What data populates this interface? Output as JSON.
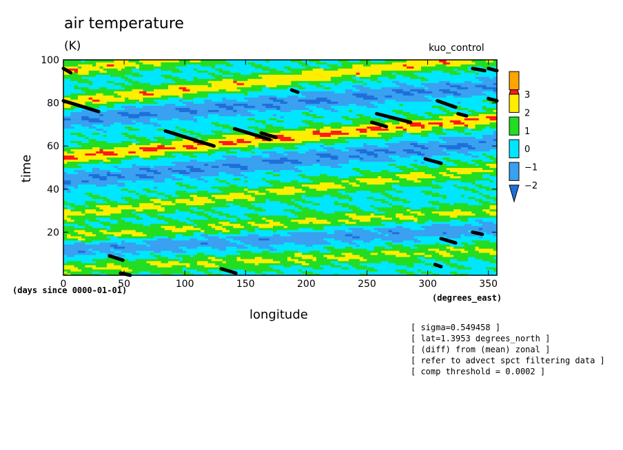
{
  "title": "air temperature",
  "units": "(K)",
  "run_label": "kuo_control",
  "time_units": "(days since 0000-01-01)",
  "lon_units": "(degrees_east)",
  "notes": [
    "[ sigma=0.549458 ]",
    "[ lat=1.3953 degrees_north ]",
    "[ (diff) from (mean) zonal ]",
    "[ refer to advect spct filtering data ]",
    "[ comp threshold = 0.0002 ]"
  ],
  "chart_data": {
    "type": "heatmap",
    "title": "air temperature",
    "subtitle": "(K)",
    "xlabel": "longitude",
    "ylabel": "time",
    "xlim": [
      0,
      357
    ],
    "ylim": [
      0,
      100
    ],
    "x_ticks": [
      "0",
      "50",
      "100",
      "150",
      "200",
      "250",
      "300",
      "350"
    ],
    "y_ticks": [
      "20",
      "40",
      "60",
      "80",
      "100"
    ],
    "colorbar": {
      "levels": [
        -3,
        -2,
        -1,
        0,
        1,
        2,
        3
      ],
      "tick_labels": [
        "3",
        "2",
        "1",
        "0",
        "−1",
        "−2"
      ],
      "colors": [
        "#1e6fd9",
        "#3aa0f0",
        "#00e6ff",
        "#22dd22",
        "#ffee00",
        "#ffa500",
        "#ff1a1a"
      ],
      "extend": "both"
    },
    "warm_bands": [
      {
        "t_at_lon0": 95,
        "t_at_lon357": 118,
        "amplitude": 1.8
      },
      {
        "t_at_lon0": 80,
        "t_at_lon357": 102,
        "amplitude": 1.9
      },
      {
        "t_at_lon0": 55,
        "t_at_lon357": 73,
        "amplitude": 2.3
      },
      {
        "t_at_lon0": 28,
        "t_at_lon357": 50,
        "amplitude": 1.5
      },
      {
        "t_at_lon0": 18,
        "t_at_lon357": 30,
        "amplitude": 1.4
      },
      {
        "t_at_lon0": 3,
        "t_at_lon357": 12,
        "amplitude": 1.3
      }
    ],
    "cold_bands": [
      {
        "t_at_lon0": 72,
        "t_at_lon357": 88,
        "amplitude": 1.7
      },
      {
        "t_at_lon0": 44,
        "t_at_lon357": 62,
        "amplitude": 1.7
      },
      {
        "t_at_lon0": 12,
        "t_at_lon357": 22,
        "amplitude": 1.3
      }
    ],
    "threshold_segments": [
      {
        "lon": [
          0,
          6
        ],
        "t": [
          96,
          94
        ]
      },
      {
        "lon": [
          0,
          29
        ],
        "t": [
          81,
          76
        ]
      },
      {
        "lon": [
          84,
          124
        ],
        "t": [
          67,
          60
        ]
      },
      {
        "lon": [
          141,
          170
        ],
        "t": [
          68,
          63
        ]
      },
      {
        "lon": [
          163,
          175
        ],
        "t": [
          66,
          64
        ]
      },
      {
        "lon": [
          188,
          193
        ],
        "t": [
          86,
          85
        ]
      },
      {
        "lon": [
          254,
          266
        ],
        "t": [
          71,
          69
        ]
      },
      {
        "lon": [
          258,
          286
        ],
        "t": [
          75,
          71
        ]
      },
      {
        "lon": [
          308,
          323
        ],
        "t": [
          81,
          78
        ]
      },
      {
        "lon": [
          325,
          332
        ],
        "t": [
          75,
          74
        ]
      },
      {
        "lon": [
          337,
          347
        ],
        "t": [
          96,
          95
        ]
      },
      {
        "lon": [
          350,
          357
        ],
        "t": [
          82,
          81
        ]
      },
      {
        "lon": [
          298,
          311
        ],
        "t": [
          54,
          52
        ]
      },
      {
        "lon": [
          311,
          323
        ],
        "t": [
          17,
          15
        ]
      },
      {
        "lon": [
          337,
          345
        ],
        "t": [
          20,
          19
        ]
      },
      {
        "lon": [
          38,
          49
        ],
        "t": [
          9,
          7
        ]
      },
      {
        "lon": [
          306,
          311
        ],
        "t": [
          5,
          4
        ]
      },
      {
        "lon": [
          130,
          142
        ],
        "t": [
          3,
          1
        ]
      },
      {
        "lon": [
          47,
          55
        ],
        "t": [
          1,
          0
        ]
      },
      {
        "lon": [
          350,
          357
        ],
        "t": [
          96,
          95
        ]
      }
    ]
  }
}
